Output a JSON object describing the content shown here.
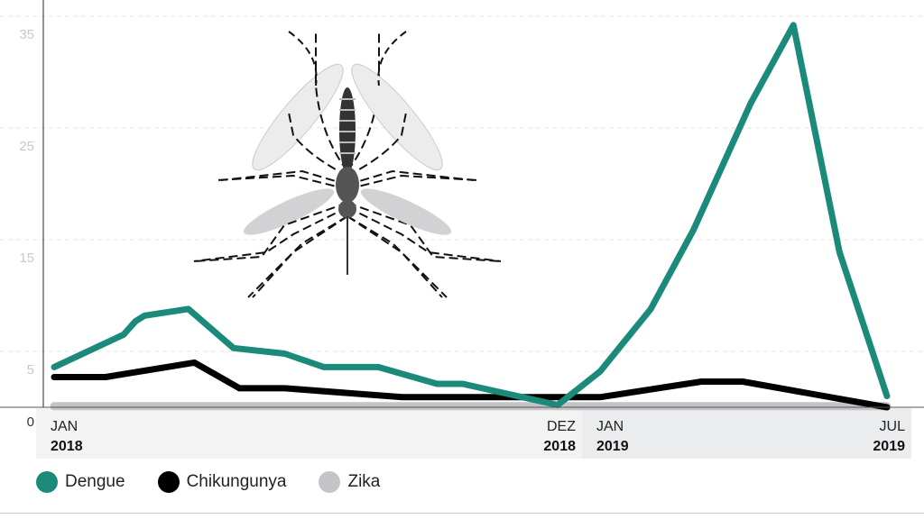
{
  "chart_data": {
    "type": "line",
    "title": "",
    "xlabel": "",
    "ylabel": "",
    "ylim": [
      0,
      35
    ],
    "yticks": [
      "35",
      "25",
      "15",
      "5",
      "0"
    ],
    "ytick_values": [
      35,
      25,
      15,
      5,
      0
    ],
    "grid": true,
    "x_tick_labels": [
      {
        "month": "JAN",
        "year": "2018",
        "date": "2018-01-01"
      },
      {
        "month": "DEZ",
        "year": "2018",
        "date": "2018-12-01"
      },
      {
        "month": "JAN",
        "year": "2019",
        "date": "2019-01-01"
      },
      {
        "month": "JUL",
        "year": "2019",
        "date": "2019-07-01"
      }
    ],
    "legend_placement": "bottom",
    "series": [
      {
        "name": "Dengue",
        "color": "#1b8a7a",
        "points": [
          [
            "2018-01-01",
            3.6
          ],
          [
            "2018-02-16",
            6.5
          ],
          [
            "2018-02-24",
            7.7
          ],
          [
            "2018-03-02",
            8.2
          ],
          [
            "2018-03-31",
            8.8
          ],
          [
            "2018-04-30",
            5.3
          ],
          [
            "2018-06-03",
            4.8
          ],
          [
            "2018-06-29",
            3.6
          ],
          [
            "2018-08-04",
            3.6
          ],
          [
            "2018-09-12",
            2.1
          ],
          [
            "2018-09-29",
            2.1
          ],
          [
            "2018-12-01",
            0.2
          ],
          [
            "2019-01-01",
            3.2
          ],
          [
            "2019-02-02",
            8.8
          ],
          [
            "2019-03-01",
            15.9
          ],
          [
            "2019-04-06",
            27.2
          ],
          [
            "2019-05-03",
            34.2
          ],
          [
            "2019-06-01",
            13.9
          ],
          [
            "2019-07-01",
            1.0
          ]
        ]
      },
      {
        "name": "Chikungunya",
        "color": "#000000",
        "points": [
          [
            "2018-01-01",
            2.7
          ],
          [
            "2018-02-04",
            2.7
          ],
          [
            "2018-04-04",
            4.0
          ],
          [
            "2018-05-04",
            1.7
          ],
          [
            "2018-06-03",
            1.7
          ],
          [
            "2018-08-20",
            0.9
          ],
          [
            "2019-01-01",
            0.9
          ],
          [
            "2019-03-06",
            2.3
          ],
          [
            "2019-04-01",
            2.3
          ],
          [
            "2019-07-01",
            0.0
          ]
        ]
      },
      {
        "name": "Zika",
        "color": "#c4c4c8",
        "points": [
          [
            "2018-01-01",
            0.1
          ],
          [
            "2019-07-01",
            0.1
          ]
        ]
      }
    ]
  },
  "illustration": "mosquito-icon"
}
